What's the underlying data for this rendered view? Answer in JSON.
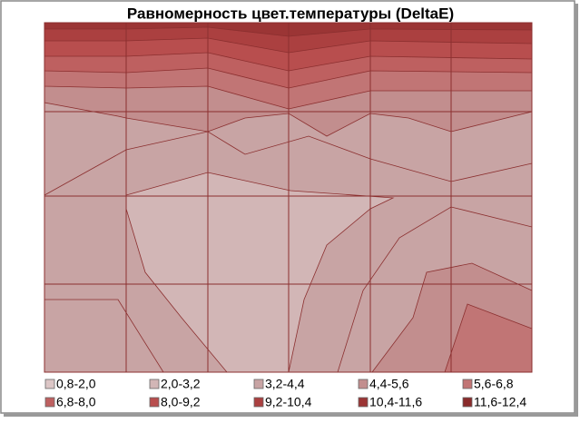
{
  "chart_data": {
    "type": "contour",
    "title": "Равномерность цвет.температуры (DeltaE)",
    "grid": true,
    "legend": [
      {
        "label": "0,8-2,0",
        "color": "#dcc6c6"
      },
      {
        "label": "2,0-3,2",
        "color": "#d2b6b6"
      },
      {
        "label": "3,2-4,4",
        "color": "#c8a4a4"
      },
      {
        "label": "4,4-5,6",
        "color": "#c28e8e"
      },
      {
        "label": "5,6-6,8",
        "color": "#c17575"
      },
      {
        "label": "6,8-8,0",
        "color": "#be6060"
      },
      {
        "label": "8,0-9,2",
        "color": "#b84e4e"
      },
      {
        "label": "9,2-10,4",
        "color": "#ab4040"
      },
      {
        "label": "10,4-11,6",
        "color": "#9b3535"
      },
      {
        "label": "11,6-12,4",
        "color": "#8a2b2b"
      }
    ]
  }
}
